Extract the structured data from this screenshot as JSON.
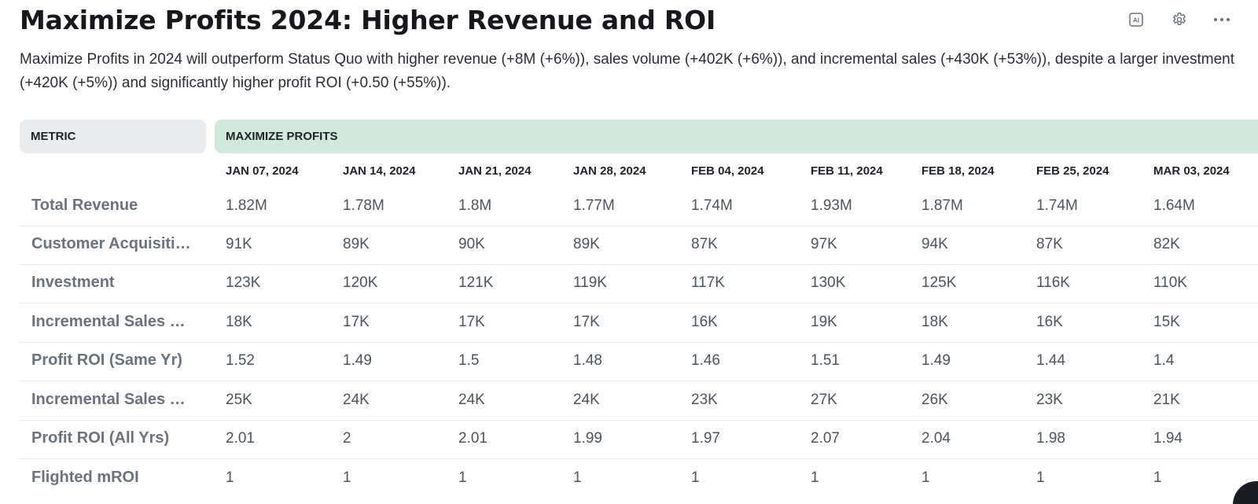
{
  "page": {
    "title": "Maximize Profits 2024: Higher Revenue and ROI",
    "summary": "Maximize Profits in 2024 will outperform Status Quo with higher revenue (+8M (+6%)), sales volume (+402K (+6%)), and incremental sales (+430K (+53%)), despite a larger investment (+420K (+5%)) and significantly higher profit ROI (+0.50 (+55%)).",
    "ai_badge": "AI"
  },
  "table": {
    "metric_header": "METRIC",
    "scenario_header": "MAXIMIZE PROFITS",
    "dates": [
      "JAN 07, 2024",
      "JAN 14, 2024",
      "JAN 21, 2024",
      "JAN 28, 2024",
      "FEB 04, 2024",
      "FEB 11, 2024",
      "FEB 18, 2024",
      "FEB 25, 2024",
      "MAR 03, 2024"
    ],
    "rows": [
      {
        "label": "Total Revenue",
        "values": [
          "1.82M",
          "1.78M",
          "1.8M",
          "1.77M",
          "1.74M",
          "1.93M",
          "1.87M",
          "1.74M",
          "1.64M"
        ]
      },
      {
        "label": "Customer Acquisiti…",
        "values": [
          "91K",
          "89K",
          "90K",
          "89K",
          "87K",
          "97K",
          "94K",
          "87K",
          "82K"
        ]
      },
      {
        "label": "Investment",
        "values": [
          "123K",
          "120K",
          "121K",
          "119K",
          "117K",
          "130K",
          "125K",
          "116K",
          "110K"
        ]
      },
      {
        "label": "Incremental Sales …",
        "values": [
          "18K",
          "17K",
          "17K",
          "17K",
          "16K",
          "19K",
          "18K",
          "16K",
          "15K"
        ]
      },
      {
        "label": "Profit ROI (Same Yr)",
        "values": [
          "1.52",
          "1.49",
          "1.5",
          "1.48",
          "1.46",
          "1.51",
          "1.49",
          "1.44",
          "1.4"
        ]
      },
      {
        "label": "Incremental Sales …",
        "values": [
          "25K",
          "24K",
          "24K",
          "24K",
          "23K",
          "27K",
          "26K",
          "23K",
          "21K"
        ]
      },
      {
        "label": "Profit ROI (All Yrs)",
        "values": [
          "2.01",
          "2",
          "2.01",
          "1.99",
          "1.97",
          "2.07",
          "2.04",
          "1.98",
          "1.94"
        ]
      },
      {
        "label": "Flighted mROI",
        "values": [
          "1",
          "1",
          "1",
          "1",
          "1",
          "1",
          "1",
          "1",
          "1"
        ]
      }
    ]
  },
  "colors": {
    "scenario_header_bg": "#cfe9dd",
    "metric_header_bg": "#e9ecee",
    "row_label": "#6a727b"
  }
}
